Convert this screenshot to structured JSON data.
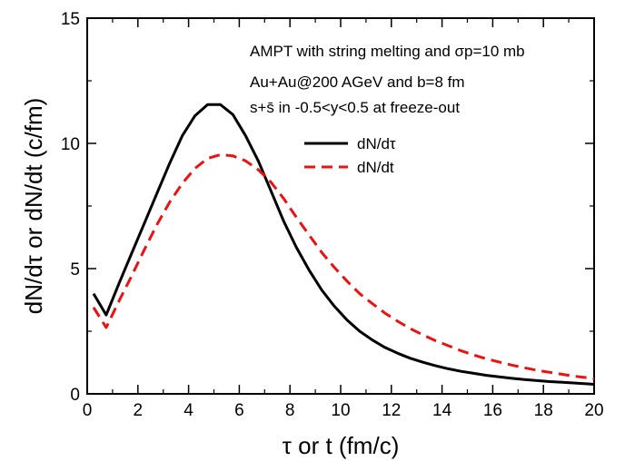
{
  "chart_data": {
    "type": "line",
    "xlabel": "τ or t (fm/c)",
    "ylabel": "dN/dτ or dN/dt (c/fm)",
    "xlim": [
      0,
      20
    ],
    "ylim": [
      0,
      15
    ],
    "xticks": [
      0,
      2,
      4,
      6,
      8,
      10,
      12,
      14,
      16,
      18,
      20
    ],
    "yticks": [
      0,
      5,
      10,
      15
    ],
    "grid": false,
    "legend_position": "upper-right",
    "annotations": [
      "AMPT with string melting and σp=10 mb",
      "Au+Au@200 AGeV and b=8 fm",
      "s+s̄ in -0.5<y<0.5 at freeze-out"
    ],
    "series": [
      {
        "name": "dN/dτ",
        "color": "#000000",
        "dash": "solid",
        "x": [
          0.25,
          0.75,
          1.25,
          1.75,
          2.25,
          2.75,
          3.25,
          3.75,
          4.25,
          4.75,
          5.25,
          5.75,
          6.25,
          6.75,
          7.25,
          7.75,
          8.25,
          8.75,
          9.25,
          9.75,
          10.25,
          10.75,
          11.25,
          11.75,
          12.25,
          12.75,
          13.25,
          13.75,
          14.25,
          14.75,
          15.25,
          15.75,
          16.25,
          16.75,
          17.25,
          17.75,
          18.25,
          18.75,
          19.25,
          19.75,
          20.0
        ],
        "y": [
          4.0,
          3.15,
          4.4,
          5.6,
          6.8,
          8.0,
          9.2,
          10.3,
          11.1,
          11.55,
          11.55,
          11.15,
          10.3,
          9.3,
          8.1,
          6.9,
          5.85,
          4.95,
          4.15,
          3.5,
          2.95,
          2.5,
          2.15,
          1.85,
          1.62,
          1.42,
          1.26,
          1.12,
          1.0,
          0.9,
          0.82,
          0.74,
          0.68,
          0.62,
          0.57,
          0.53,
          0.49,
          0.46,
          0.43,
          0.4,
          0.38
        ]
      },
      {
        "name": "dN/dt",
        "color": "#ee1111",
        "dash": "dashed",
        "x": [
          0.25,
          0.75,
          1.25,
          1.75,
          2.25,
          2.75,
          3.25,
          3.75,
          4.25,
          4.75,
          5.25,
          5.75,
          6.25,
          6.75,
          7.25,
          7.75,
          8.25,
          8.75,
          9.25,
          9.75,
          10.25,
          10.75,
          11.25,
          11.75,
          12.25,
          12.75,
          13.25,
          13.75,
          14.25,
          14.75,
          15.25,
          15.75,
          16.25,
          16.75,
          17.25,
          17.75,
          18.25,
          18.75,
          19.25,
          19.75,
          20.0
        ],
        "y": [
          3.45,
          2.65,
          3.7,
          4.7,
          5.75,
          6.75,
          7.65,
          8.4,
          9.0,
          9.4,
          9.55,
          9.5,
          9.3,
          8.95,
          8.45,
          7.8,
          7.05,
          6.35,
          5.65,
          5.05,
          4.5,
          4.0,
          3.6,
          3.22,
          2.9,
          2.6,
          2.35,
          2.12,
          1.92,
          1.72,
          1.55,
          1.4,
          1.27,
          1.15,
          1.04,
          0.94,
          0.86,
          0.78,
          0.7,
          0.64,
          0.6
        ]
      }
    ]
  }
}
